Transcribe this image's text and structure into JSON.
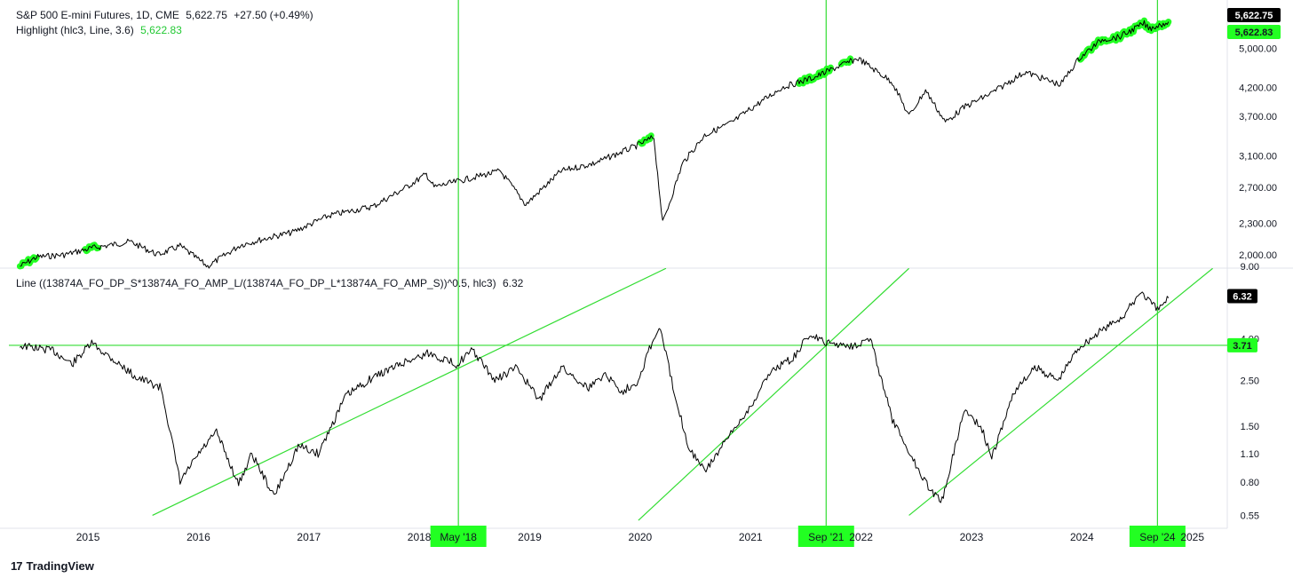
{
  "top_pane": {
    "symbol": "S&P 500 E-mini Futures, 1D, CME",
    "price": "5,622.75",
    "change": "+27.50 (+0.49%)",
    "indicator_label": "Highlight (hlc3, Line, 3.6)",
    "indicator_value": "5,622.83"
  },
  "bottom_pane": {
    "indicator_label": "Line ((13874A_FO_DP_S*13874A_FO_AMP_L/(13874A_FO_DP_L*13874A_FO_AMP_S))^0.5, hlc3)",
    "indicator_value": "6.32"
  },
  "branding": {
    "logo": "17",
    "name": "TradingView"
  },
  "colors": {
    "highlight": "#22ff22",
    "line": "#000000",
    "trend": "#33dd33",
    "price_tag": "#000000"
  },
  "chart_data": [
    {
      "type": "line",
      "title": "S&P 500 E-mini Futures, 1D, CME",
      "scale": "log",
      "ylim": [
        1900,
        6000
      ],
      "y_ticks": [
        2000,
        2300,
        2700,
        3100,
        3700,
        4200,
        5000
      ],
      "y_tick_labels": [
        "2,000.00",
        "2,300.00",
        "2,700.00",
        "3,100.00",
        "3,700.00",
        "4,200.00",
        "5,000.00"
      ],
      "last_price_label": "5,622.75",
      "highlight_value_label": "5,622.83",
      "series": [
        {
          "x": [
            2014.4,
            2014.55,
            2014.8,
            2015.05,
            2015.4,
            2015.65,
            2015.85,
            2016.1,
            2016.4,
            2016.7,
            2016.87,
            2017.2,
            2017.6,
            2017.9,
            2018.08,
            2018.15,
            2018.45,
            2018.75,
            2018.98,
            2019.3,
            2019.6,
            2019.98,
            2020.14,
            2020.22,
            2020.4,
            2020.6,
            2020.85,
            2021.0,
            2021.3,
            2021.6,
            2021.8,
            2021.99,
            2022.3,
            2022.45,
            2022.6,
            2022.78,
            2022.95,
            2023.2,
            2023.5,
            2023.82,
            2023.99,
            2024.2,
            2024.35,
            2024.58,
            2024.62,
            2024.8
          ],
          "values": [
            1900,
            1980,
            2000,
            2060,
            2120,
            2000,
            2080,
            1900,
            2090,
            2170,
            2210,
            2380,
            2480,
            2700,
            2860,
            2700,
            2800,
            2900,
            2500,
            2900,
            3000,
            3240,
            3370,
            2300,
            3000,
            3400,
            3600,
            3800,
            4200,
            4400,
            4600,
            4780,
            4300,
            3700,
            4150,
            3600,
            3850,
            4100,
            4500,
            4250,
            4780,
            5200,
            5250,
            5580,
            5450,
            5623
          ]
        }
      ],
      "highlight_ranges": [
        [
          2014.4,
          2014.55
        ],
        [
          2014.98,
          2015.12
        ],
        [
          2020.01,
          2020.12
        ],
        [
          2021.45,
          2021.75
        ],
        [
          2021.83,
          2021.93
        ],
        [
          2024.0,
          2024.8
        ]
      ]
    },
    {
      "type": "line",
      "title": "Line ((13874A_FO_DP_S*13874A_FO_AMP_L/(13874A_FO_DP_L*13874A_FO_AMP_S))^0.5, hlc3)",
      "scale": "log",
      "ylim": [
        0.5,
        9
      ],
      "y_ticks": [
        0.55,
        0.8,
        1.1,
        1.5,
        2.5,
        4,
        9
      ],
      "y_tick_labels": [
        "0.55",
        "0.80",
        "1.10",
        "1.50",
        "2.50",
        "4.00",
        "9.00"
      ],
      "last_value_label": "6.32",
      "level_label": "3.71",
      "level_value": 3.71,
      "series": [
        {
          "x": [
            2014.4,
            2014.7,
            2014.87,
            2015.05,
            2015.2,
            2015.45,
            2015.68,
            2015.85,
            2016.02,
            2016.18,
            2016.38,
            2016.5,
            2016.7,
            2016.92,
            2017.1,
            2017.35,
            2017.6,
            2017.9,
            2018.1,
            2018.35,
            2018.5,
            2018.7,
            2018.9,
            2019.1,
            2019.3,
            2019.55,
            2019.7,
            2019.85,
            2020.0,
            2020.1,
            2020.2,
            2020.3,
            2020.45,
            2020.6,
            2020.85,
            2021.05,
            2021.2,
            2021.4,
            2021.55,
            2021.7,
            2021.95,
            2022.1,
            2022.3,
            2022.5,
            2022.65,
            2022.75,
            2022.95,
            2023.1,
            2023.2,
            2023.4,
            2023.6,
            2023.8,
            2023.98,
            2024.2,
            2024.4,
            2024.55,
            2024.7,
            2024.8
          ],
          "values": [
            3.7,
            3.5,
            3.0,
            3.8,
            3.3,
            2.6,
            2.3,
            0.8,
            1.1,
            1.4,
            0.78,
            1.1,
            0.68,
            1.2,
            1.1,
            2.1,
            2.6,
            3.1,
            3.4,
            3.0,
            3.5,
            2.5,
            2.9,
            2.0,
            2.9,
            2.3,
            2.7,
            2.2,
            2.5,
            3.6,
            4.5,
            2.5,
            1.2,
            0.9,
            1.4,
            2.0,
            2.8,
            3.2,
            4.2,
            3.8,
            3.7,
            4.0,
            1.6,
            1.0,
            0.72,
            0.65,
            1.8,
            1.5,
            1.05,
            2.2,
            2.9,
            2.5,
            3.6,
            4.4,
            5.2,
            6.8,
            5.5,
            6.32
          ]
        }
      ],
      "trend_lines": [
        {
          "from": [
            2015.6,
            0.55
          ],
          "to": [
            2020.25,
            8.8
          ]
        },
        {
          "from": [
            2020.0,
            0.52
          ],
          "to": [
            2022.45,
            8.8
          ]
        },
        {
          "from": [
            2022.45,
            0.55
          ],
          "to": [
            2025.2,
            8.8
          ]
        }
      ]
    }
  ],
  "x_axis": {
    "ticks": [
      2015,
      2016,
      2017,
      2018,
      2019,
      2020,
      2021,
      2022,
      2023,
      2024,
      2025
    ],
    "tick_labels": [
      "2015",
      "2016",
      "2017",
      "2018",
      "2019",
      "2020",
      "2021",
      "2022",
      "2023",
      "2024",
      "2025"
    ],
    "xlim": [
      2014.3,
      2025.3
    ]
  },
  "vertical_markers": [
    {
      "date": 2018.37,
      "label": "May '18"
    },
    {
      "date": 2021.7,
      "label": "Sep '21"
    },
    {
      "date": 2024.7,
      "label": "Sep '24"
    }
  ]
}
